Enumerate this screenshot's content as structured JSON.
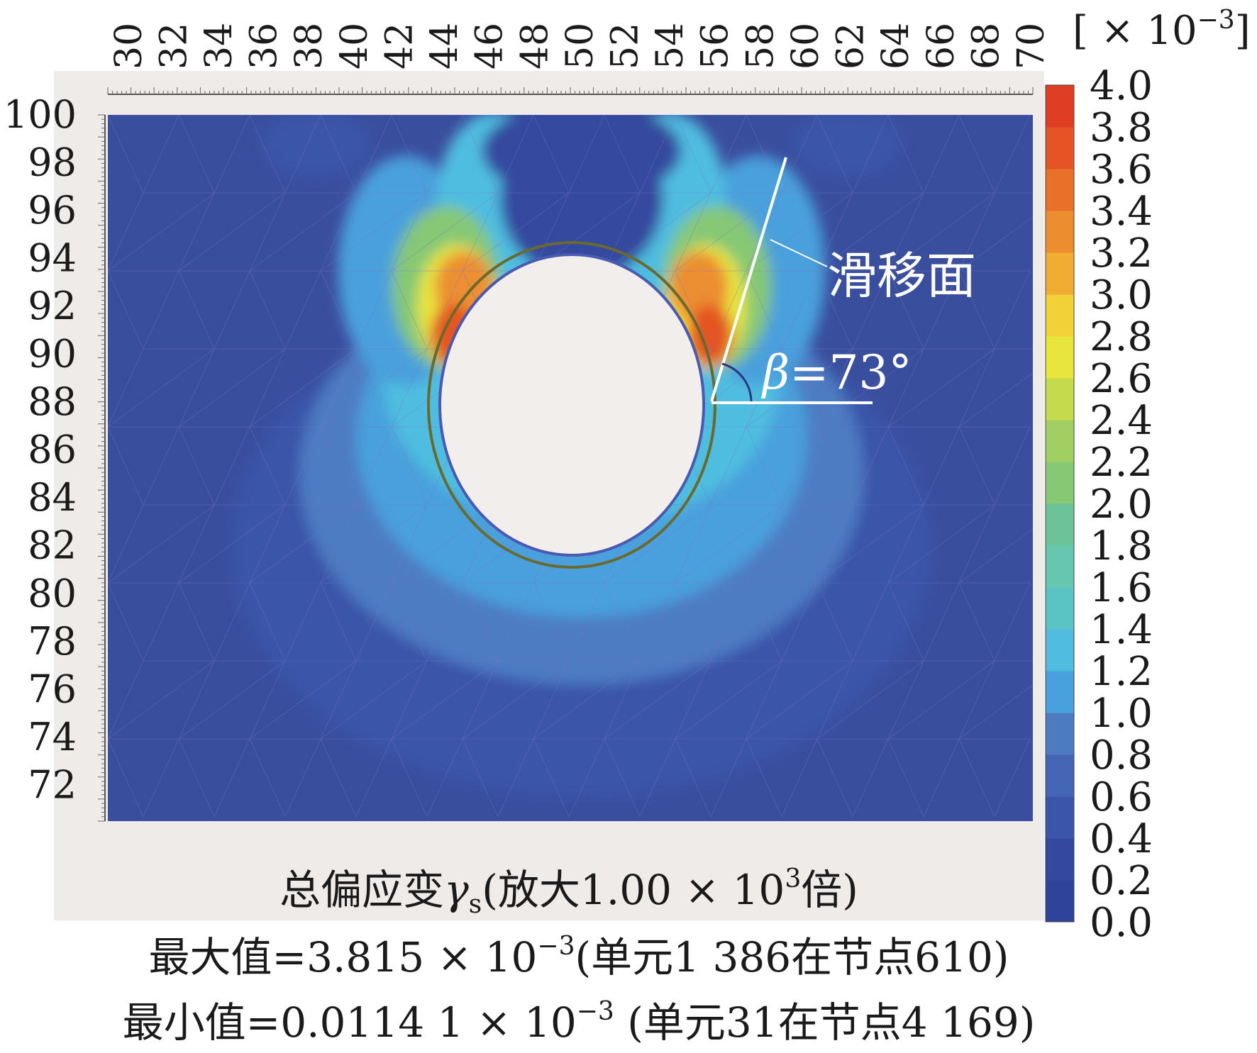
{
  "chart_data": {
    "type": "heatmap",
    "title": "",
    "x_ticks": [
      "30",
      "32",
      "34",
      "36",
      "38",
      "40",
      "42",
      "44",
      "46",
      "48",
      "50",
      "52",
      "54",
      "56",
      "58",
      "60",
      "62",
      "64",
      "66",
      "68",
      "70"
    ],
    "y_ticks": [
      "100",
      "98",
      "96",
      "94",
      "92",
      "90",
      "88",
      "86",
      "84",
      "82",
      "80",
      "78",
      "76",
      "74",
      "72"
    ],
    "xlim": [
      29,
      70
    ],
    "ylim": [
      70.5,
      100
    ],
    "colorbar": {
      "unit_label": "[ × 10",
      "unit_exp": "−3",
      "unit_close": "]",
      "tick_labels": [
        "4.0",
        "3.8",
        "3.6",
        "3.4",
        "3.2",
        "3.0",
        "2.8",
        "2.6",
        "2.4",
        "2.2",
        "2.0",
        "1.8",
        "1.6",
        "1.4",
        "1.2",
        "1.0",
        "0.8",
        "0.6",
        "0.4",
        "0.2",
        "0.0"
      ],
      "colors": [
        "#2f4398",
        "#34489e",
        "#3b55a8",
        "#4466b4",
        "#4d7bc2",
        "#48a0dc",
        "#50bde0",
        "#5ac4c4",
        "#66c6b0",
        "#6cc39a",
        "#86c874",
        "#a2cf62",
        "#c5db4c",
        "#e8e53c",
        "#f2d038",
        "#f0ad34",
        "#ec8e30",
        "#e87028",
        "#e45424",
        "#e03e24"
      ],
      "min": 0.0,
      "max": 4.0
    },
    "field": {
      "description_value_units": "x10^-3",
      "background_value": 0.2,
      "tunnel_center": [
        50.0,
        87.7
      ],
      "tunnel_radius": 5.3,
      "max_value": 3.815,
      "min_value": 0.01141
    },
    "annotations": {
      "slip_label": "滑移面",
      "angle_symbol": "β",
      "angle_value": "=73°"
    },
    "caption": {
      "line1_prefix": "总偏应变",
      "line1_symbol": "γ",
      "line1_sub": "s",
      "line1_mid": "(放大1.00 × 10",
      "line1_exp": "3",
      "line1_suffix": "倍)",
      "line2_prefix": "最大值=3.815 × 10",
      "line2_exp": "−3",
      "line2_suffix": "(单元1 386在节点610)",
      "line3_prefix": "最小值=0.0114 1 × 10",
      "line3_exp": "−3",
      "line3_suffix": " (单元31在节点4 169)"
    }
  }
}
